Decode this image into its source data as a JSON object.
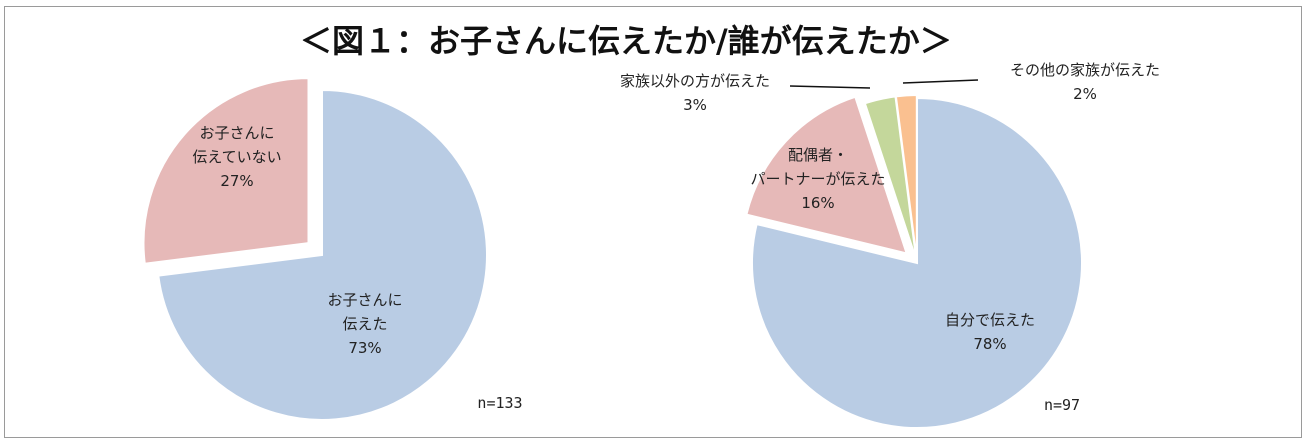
{
  "title": "＜図１：お子さんに伝えたか/誰が伝えたか＞",
  "chart_data": [
    {
      "type": "pie",
      "slices": [
        {
          "label_lines": [
            "お子さんに",
            "伝えた"
          ],
          "value": 73,
          "value_label": "73%",
          "color": "#b9cce4"
        },
        {
          "label_lines": [
            "お子さんに",
            "伝えていない"
          ],
          "value": 27,
          "value_label": "27%",
          "color": "#e6b9b8"
        }
      ],
      "note": "n=133"
    },
    {
      "type": "pie",
      "slices": [
        {
          "label_lines": [
            "自分で伝えた"
          ],
          "value": 78,
          "value_label": "78%",
          "color": "#b9cce4"
        },
        {
          "label_lines": [
            "配偶者・",
            "パートナーが伝えた"
          ],
          "value": 16,
          "value_label": "16%",
          "color": "#e6b9b8"
        },
        {
          "label_lines": [
            "家族以外の方が伝えた"
          ],
          "value": 3,
          "value_label": "3%",
          "color": "#c4d79b"
        },
        {
          "label_lines": [
            "その他の家族が伝えた"
          ],
          "value": 2,
          "value_label": "2%",
          "color": "#fac090"
        }
      ],
      "note": "n=97"
    }
  ]
}
